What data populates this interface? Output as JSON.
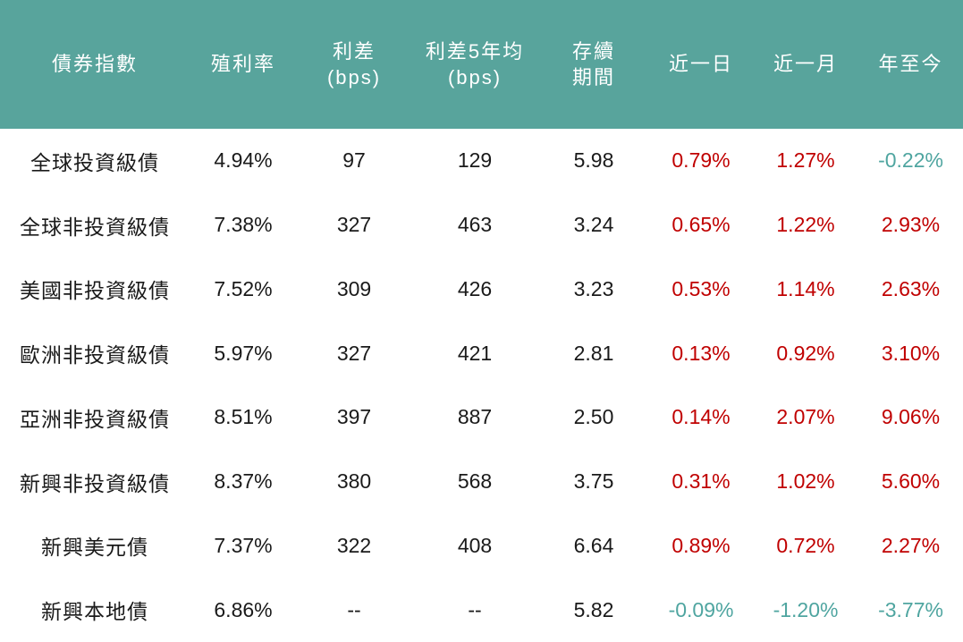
{
  "chart_data": {
    "type": "table",
    "title": "",
    "columns": [
      "債券指數",
      "殖利率",
      "利差\n(bps)",
      "利差5年均\n(bps)",
      "存續\n期間",
      "近一日",
      "近一月",
      "年至今"
    ],
    "rows": [
      [
        "全球投資級債",
        "4.94%",
        "97",
        "129",
        "5.98",
        "0.79%",
        "1.27%",
        "-0.22%"
      ],
      [
        "全球非投資級債",
        "7.38%",
        "327",
        "463",
        "3.24",
        "0.65%",
        "1.22%",
        "2.93%"
      ],
      [
        "美國非投資級債",
        "7.52%",
        "309",
        "426",
        "3.23",
        "0.53%",
        "1.14%",
        "2.63%"
      ],
      [
        "歐洲非投資級債",
        "5.97%",
        "327",
        "421",
        "2.81",
        "0.13%",
        "0.92%",
        "3.10%"
      ],
      [
        "亞洲非投資級債",
        "8.51%",
        "397",
        "887",
        "2.50",
        "0.14%",
        "2.07%",
        "9.06%"
      ],
      [
        "新興非投資級債",
        "8.37%",
        "380",
        "568",
        "3.75",
        "0.31%",
        "1.02%",
        "5.60%"
      ],
      [
        "新興美元債",
        "7.37%",
        "322",
        "408",
        "6.64",
        "0.89%",
        "0.72%",
        "2.27%"
      ],
      [
        "新興本地債",
        "6.86%",
        "--",
        "--",
        "5.82",
        "-0.09%",
        "-1.20%",
        "-3.77%"
      ]
    ],
    "change_columns": [
      5,
      6,
      7
    ],
    "no_data_marker": "--",
    "legend_position": "none",
    "grid": false
  },
  "colors": {
    "header_bg": "#58a49c",
    "header_text": "#ffffff",
    "body_text": "#1a1a1a",
    "positive_change": "#c00000",
    "negative_change": "#4fa5a0",
    "row_bg": "#ffffff"
  }
}
